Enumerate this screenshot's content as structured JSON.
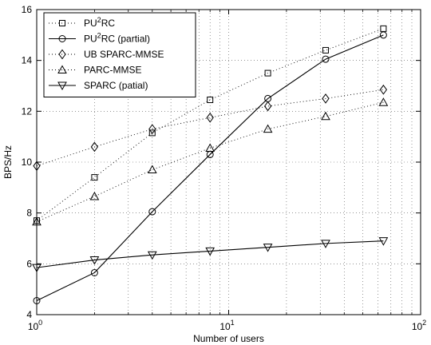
{
  "chart_data": {
    "type": "line",
    "title": "",
    "xlabel": "Number of users",
    "ylabel": "BPS/Hz",
    "x_scale": "log",
    "xlim": [
      1,
      100
    ],
    "ylim": [
      4,
      16
    ],
    "x_ticks": [
      1,
      10,
      100
    ],
    "y_ticks": [
      4,
      6,
      8,
      10,
      12,
      14,
      16
    ],
    "grid": true,
    "legend_position": "top-left",
    "x": [
      1,
      2,
      4,
      8,
      16,
      32,
      64
    ],
    "series": [
      {
        "name": "PU²RC",
        "marker": "square",
        "line": "dotted",
        "values": [
          7.7,
          9.4,
          11.15,
          12.45,
          13.5,
          14.4,
          15.25
        ]
      },
      {
        "name": "PU²RC (partial)",
        "marker": "circle",
        "line": "solid",
        "values": [
          4.55,
          5.65,
          8.05,
          10.3,
          12.5,
          14.05,
          15.0
        ]
      },
      {
        "name": "UB SPARC-MMSE",
        "marker": "diamond",
        "line": "dotted",
        "values": [
          9.85,
          10.6,
          11.3,
          11.75,
          12.2,
          12.5,
          12.85
        ]
      },
      {
        "name": "PARC-MMSE",
        "marker": "triangle-up",
        "line": "dotted",
        "values": [
          7.65,
          8.65,
          9.7,
          10.55,
          11.3,
          11.8,
          12.35
        ]
      },
      {
        "name": "SPARC (patial)",
        "marker": "triangle-down",
        "line": "solid",
        "values": [
          5.85,
          6.15,
          6.35,
          6.5,
          6.65,
          6.8,
          6.9
        ]
      }
    ]
  }
}
